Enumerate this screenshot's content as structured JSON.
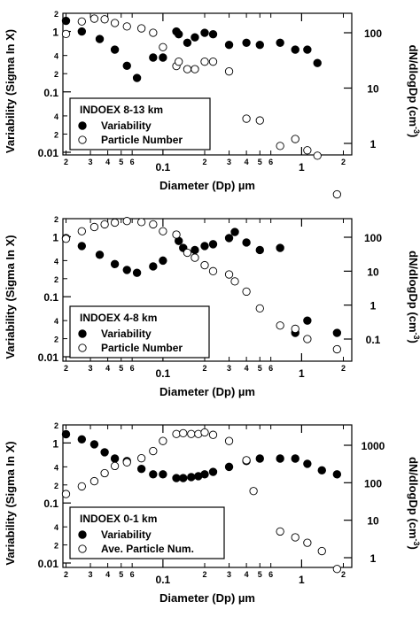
{
  "chart_data": [
    {
      "type": "scatter",
      "x_label": "Diameter (Dp) µm",
      "y_left_label": "Variability (Sigma In X)",
      "y_right_label": "dN/dlogDp (cm^-3)",
      "x_scale": "log",
      "y_left_scale": "log",
      "y_right_scale": "log",
      "xlim": [
        0.019,
        2.3
      ],
      "y_left_lim": [
        0.01,
        2
      ],
      "y_right_lim": [
        0.1,
        300
      ],
      "legend": {
        "title": "INDOEX  8-13 km",
        "placement": "bottom-left",
        "entries": [
          "Variability",
          "Particle Number"
        ]
      },
      "series": [
        {
          "name": "Variability",
          "marker": "filled-circle",
          "axis": "left",
          "x": [
            0.02,
            0.026,
            0.035,
            0.045,
            0.055,
            0.065,
            0.085,
            0.1,
            0.125,
            0.13,
            0.15,
            0.17,
            0.2,
            0.23,
            0.3,
            0.4,
            0.5,
            0.7,
            0.9,
            1.1,
            1.3
          ],
          "y": [
            1.5,
            1.0,
            0.75,
            0.5,
            0.27,
            0.17,
            0.37,
            0.37,
            1.0,
            0.9,
            0.65,
            0.8,
            0.95,
            0.9,
            0.6,
            0.65,
            0.6,
            0.65,
            0.5,
            0.5,
            0.3
          ]
        },
        {
          "name": "Particle Number",
          "marker": "open-circle",
          "axis": "right",
          "x": [
            0.02,
            0.026,
            0.032,
            0.038,
            0.045,
            0.055,
            0.07,
            0.085,
            0.1,
            0.125,
            0.13,
            0.15,
            0.17,
            0.2,
            0.23,
            0.3,
            0.4,
            0.5,
            0.7,
            0.9,
            1.1,
            1.3,
            1.8
          ],
          "y": [
            95,
            160,
            180,
            175,
            150,
            130,
            120,
            100,
            55,
            25,
            30,
            22,
            22,
            30,
            30,
            20,
            2.8,
            2.6,
            0.9,
            1.2,
            0.75,
            0.6,
            0.12
          ]
        }
      ]
    },
    {
      "type": "scatter",
      "x_label": "Diameter (Dp) µm",
      "y_left_label": "Variability (Sigma In X)",
      "y_right_label": "dN/dlogDp (cm^-3)",
      "x_scale": "log",
      "y_left_scale": "log",
      "y_right_scale": "log",
      "xlim": [
        0.019,
        2.3
      ],
      "y_left_lim": [
        0.01,
        2
      ],
      "y_right_lim": [
        0.03,
        300
      ],
      "legend": {
        "title": "INDOEX 4-8 km",
        "placement": "bottom-left",
        "entries": [
          "Variability",
          "Particle Number"
        ]
      },
      "series": [
        {
          "name": "Variability",
          "marker": "filled-circle",
          "axis": "left",
          "x": [
            0.02,
            0.026,
            0.035,
            0.045,
            0.055,
            0.065,
            0.085,
            0.1,
            0.13,
            0.14,
            0.17,
            0.2,
            0.23,
            0.3,
            0.33,
            0.4,
            0.5,
            0.7,
            0.9,
            1.1,
            1.8
          ],
          "y": [
            0.95,
            0.7,
            0.5,
            0.35,
            0.28,
            0.25,
            0.32,
            0.4,
            0.85,
            0.65,
            0.6,
            0.7,
            0.75,
            0.95,
            1.2,
            0.8,
            0.6,
            0.65,
            0.025,
            0.04,
            0.025
          ]
        },
        {
          "name": "Particle Number",
          "marker": "open-circle",
          "axis": "right",
          "x": [
            0.02,
            0.026,
            0.032,
            0.038,
            0.045,
            0.055,
            0.07,
            0.085,
            0.1,
            0.125,
            0.15,
            0.17,
            0.2,
            0.23,
            0.3,
            0.33,
            0.4,
            0.5,
            0.7,
            0.9,
            1.1,
            1.8
          ],
          "y": [
            90,
            150,
            200,
            240,
            270,
            300,
            280,
            240,
            150,
            120,
            35,
            25,
            15,
            10,
            8,
            5,
            2.5,
            0.8,
            0.25,
            0.2,
            0.1,
            0.05
          ]
        }
      ]
    },
    {
      "type": "scatter",
      "x_label": "Diameter (Dp) µm",
      "y_left_label": "Variability (Sigma In X)",
      "y_right_label": "dN/dlogDp (cm^-3)",
      "x_scale": "log",
      "y_left_scale": "log",
      "y_right_scale": "log",
      "xlim": [
        0.019,
        2.3
      ],
      "y_left_lim": [
        0.01,
        2
      ],
      "y_right_lim": [
        0.3,
        3000
      ],
      "legend": {
        "title": "INDOEX  0-1 km",
        "placement": "bottom-left",
        "entries": [
          "Variability",
          "Ave. Particle Num."
        ]
      },
      "series": [
        {
          "name": "Variability",
          "marker": "filled-circle",
          "axis": "left",
          "x": [
            0.02,
            0.026,
            0.032,
            0.038,
            0.045,
            0.055,
            0.07,
            0.085,
            0.1,
            0.125,
            0.14,
            0.16,
            0.18,
            0.2,
            0.23,
            0.3,
            0.4,
            0.5,
            0.7,
            0.9,
            1.1,
            1.4,
            1.8
          ],
          "y": [
            1.4,
            1.15,
            0.95,
            0.7,
            0.55,
            0.5,
            0.37,
            0.3,
            0.3,
            0.26,
            0.26,
            0.27,
            0.28,
            0.3,
            0.33,
            0.4,
            0.5,
            0.55,
            0.55,
            0.55,
            0.45,
            0.35,
            0.3
          ]
        },
        {
          "name": "Ave. Particle Num.",
          "marker": "open-circle",
          "axis": "right",
          "x": [
            0.02,
            0.026,
            0.032,
            0.038,
            0.045,
            0.055,
            0.07,
            0.085,
            0.1,
            0.125,
            0.14,
            0.16,
            0.18,
            0.2,
            0.23,
            0.3,
            0.4,
            0.45,
            0.7,
            0.9,
            1.1,
            1.4,
            1.8
          ],
          "y": [
            50,
            80,
            110,
            180,
            280,
            350,
            450,
            700,
            1300,
            2000,
            2100,
            2000,
            2000,
            2200,
            1900,
            1300,
            400,
            60,
            5,
            3.5,
            2.5,
            1.5,
            0.5
          ]
        }
      ]
    }
  ],
  "ticks": {
    "x_major": [
      {
        "v": 0.1,
        "label": "0.1"
      },
      {
        "v": 1,
        "label": "1"
      }
    ],
    "x_minor": [
      {
        "v": 0.02,
        "label": "2"
      },
      {
        "v": 0.03,
        "label": "3"
      },
      {
        "v": 0.04,
        "label": "4"
      },
      {
        "v": 0.05,
        "label": "5"
      },
      {
        "v": 0.06,
        "label": "6"
      },
      {
        "v": 0.2,
        "label": "2"
      },
      {
        "v": 0.3,
        "label": "3"
      },
      {
        "v": 0.4,
        "label": "4"
      },
      {
        "v": 0.5,
        "label": "5"
      },
      {
        "v": 0.6,
        "label": "6"
      },
      {
        "v": 2,
        "label": "2"
      }
    ],
    "y_left_major": [
      {
        "v": 1,
        "label": "1"
      },
      {
        "v": 0.1,
        "label": "0.1"
      },
      {
        "v": 0.01,
        "label": "0.01"
      }
    ],
    "y_left_minor": [
      {
        "v": 2,
        "label": "2"
      },
      {
        "v": 0.4,
        "label": "4"
      },
      {
        "v": 0.2,
        "label": "2"
      },
      {
        "v": 0.04,
        "label": "4"
      },
      {
        "v": 0.02,
        "label": "2"
      }
    ],
    "y_right": [
      [
        {
          "v": 100,
          "label": "100"
        },
        {
          "v": 10,
          "label": "10"
        },
        {
          "v": 1,
          "label": "1"
        }
      ],
      [
        {
          "v": 100,
          "label": "100"
        },
        {
          "v": 10,
          "label": "10"
        },
        {
          "v": 1,
          "label": "1"
        },
        {
          "v": 0.1,
          "label": "0.1"
        }
      ],
      [
        {
          "v": 1000,
          "label": "1000"
        },
        {
          "v": 100,
          "label": "100"
        },
        {
          "v": 10,
          "label": "10"
        },
        {
          "v": 1,
          "label": "1"
        }
      ]
    ]
  }
}
